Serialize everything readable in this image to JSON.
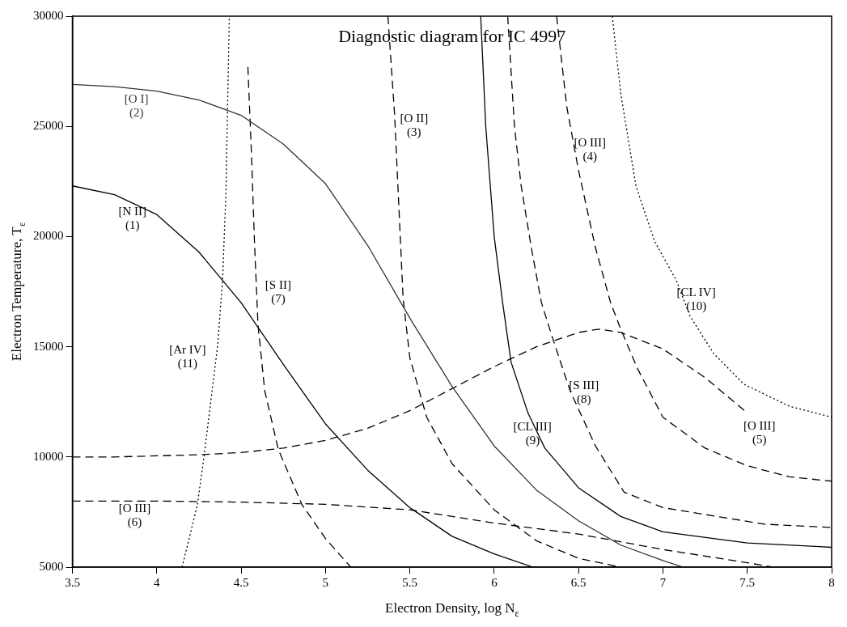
{
  "chart_data": {
    "type": "line",
    "title": "Diagnostic diagram for IC 4997",
    "xlabel": "Electron Density, log N$_{ε}$",
    "ylabel": "Electron Temperature, T$_{ε}$",
    "xlim": [
      3.5,
      8
    ],
    "xticks": [
      3.5,
      4,
      4.5,
      5,
      5.5,
      6,
      6.5,
      7,
      7.5,
      8
    ],
    "ylim": [
      5000,
      30000
    ],
    "yticks": [
      5000,
      10000,
      15000,
      20000,
      25000,
      30000
    ],
    "grid": false,
    "legend": false,
    "marker": "none",
    "series": [
      {
        "name": "[N II]\n(1)",
        "color": "#000000",
        "line_style": "solid",
        "x": [
          3.5,
          3.75,
          4,
          4.25,
          4.5,
          4.75,
          5,
          5.25,
          5.5,
          5.75,
          6,
          6.23
        ],
        "values": [
          22300,
          21900,
          21000,
          19300,
          17000,
          14200,
          11500,
          9400,
          7700,
          6400,
          5600,
          5000
        ]
      },
      {
        "name": "[O I]\n(2)",
        "color": "#333333",
        "line_style": "solid",
        "x": [
          3.5,
          3.75,
          4,
          4.25,
          4.5,
          4.75,
          5,
          5.25,
          5.5,
          5.75,
          6,
          6.25,
          6.5,
          6.75,
          7,
          7.12
        ],
        "values": [
          26900,
          26800,
          26600,
          26200,
          25500,
          24200,
          22400,
          19600,
          16300,
          13200,
          10500,
          8500,
          7100,
          6000,
          5300,
          5000
        ]
      },
      {
        "name": "[O II]\n(3)",
        "color": "#000000",
        "line_style": "dashed",
        "x": [
          5.37,
          5.41,
          5.46,
          5.5,
          5.6,
          5.75,
          6,
          6.25,
          6.5,
          6.75
        ],
        "values": [
          30000,
          25500,
          17200,
          14500,
          11800,
          9700,
          7600,
          6200,
          5400,
          5000
        ]
      },
      {
        "name": "[O III]\n(4)",
        "color": "#000000",
        "line_style": "dashed",
        "x": [
          6.37,
          6.43,
          6.5,
          6.6,
          6.69,
          6.75,
          6.85,
          7,
          7.25,
          7.5,
          7.75,
          8
        ],
        "values": [
          30000,
          25900,
          23000,
          19500,
          17000,
          15800,
          14000,
          11800,
          10400,
          9600,
          9100,
          8900
        ]
      },
      {
        "name": "[O III]\n(5)",
        "color": "#000000",
        "line_style": "dashed",
        "x": [
          3.5,
          3.75,
          4,
          4.25,
          4.5,
          4.75,
          5,
          5.25,
          5.5,
          5.75,
          6,
          6.25,
          6.5,
          6.62,
          6.75,
          7,
          7.25,
          7.5
        ],
        "values": [
          10000,
          10000,
          10050,
          10100,
          10200,
          10400,
          10750,
          11300,
          12100,
          13100,
          14100,
          15000,
          15650,
          15800,
          15650,
          14900,
          13600,
          12000
        ]
      },
      {
        "name": "[O III]\n(6)",
        "color": "#000000",
        "line_style": "dashed",
        "x": [
          3.5,
          4,
          4.5,
          5,
          5.5,
          6,
          6.5,
          7,
          7.5,
          7.65
        ],
        "values": [
          8000,
          8000,
          7950,
          7850,
          7600,
          7000,
          6500,
          5800,
          5200,
          5000
        ]
      },
      {
        "name": "[S II]\n(7)",
        "color": "#000000",
        "line_style": "dashed",
        "x": [
          4.54,
          4.56,
          4.58,
          4.6,
          4.64,
          4.72,
          4.86,
          5,
          5.15
        ],
        "values": [
          27700,
          24000,
          19600,
          16000,
          13000,
          10350,
          7840,
          6300,
          5000
        ]
      },
      {
        "name": "[S III]\n(8)",
        "color": "#000000",
        "line_style": "dashed",
        "x": [
          6.08,
          6.12,
          6.16,
          6.22,
          6.28,
          6.35,
          6.45,
          6.6,
          6.77,
          7,
          7.32,
          7.6,
          8
        ],
        "values": [
          30000,
          25000,
          22300,
          19500,
          17000,
          15300,
          13000,
          10500,
          8400,
          7700,
          7300,
          6950,
          6800
        ]
      },
      {
        "name": "[CL III]\n(9)",
        "color": "#000000",
        "line_style": "solid",
        "x": [
          5.92,
          5.95,
          6,
          6.05,
          6.1,
          6.2,
          6.3,
          6.5,
          6.75,
          7,
          7.5,
          8
        ],
        "values": [
          30000,
          25000,
          20000,
          17000,
          14300,
          12000,
          10400,
          8600,
          7300,
          6600,
          6100,
          5900
        ]
      },
      {
        "name": "[CL IV]\n(10)",
        "color": "#000000",
        "line_style": "dotted",
        "x": [
          6.7,
          6.75,
          6.84,
          6.95,
          7.08,
          7.16,
          7.3,
          7.48,
          7.75,
          8
        ],
        "values": [
          30000,
          26500,
          22300,
          19800,
          18000,
          16400,
          14700,
          13300,
          12300,
          11800
        ]
      },
      {
        "name": "[Ar IV]\n(11)",
        "color": "#000000",
        "line_style": "dotted",
        "x": [
          4.15,
          4.24,
          4.28,
          4.32,
          4.36,
          4.39,
          4.41,
          4.42,
          4.43
        ],
        "values": [
          5000,
          7800,
          10000,
          12500,
          15000,
          18000,
          22000,
          26000,
          30000
        ]
      }
    ]
  }
}
